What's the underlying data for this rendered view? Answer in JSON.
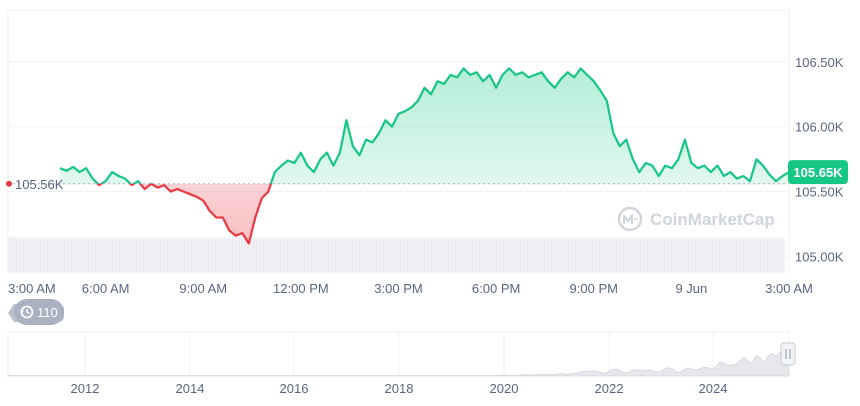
{
  "chart_data": {
    "type": "area",
    "baseline": {
      "value": 105.56,
      "label": "105.56K"
    },
    "current": {
      "value": 105.65,
      "label": "105.65K"
    },
    "y_axis": {
      "unit": "K",
      "range": [
        104.88,
        106.9
      ],
      "ticks": [
        {
          "value": 106.5,
          "label": "106.50K"
        },
        {
          "value": 106.0,
          "label": "106.00K"
        },
        {
          "value": 105.5,
          "label": "105.50K"
        },
        {
          "value": 105.0,
          "label": "105.00K"
        }
      ]
    },
    "x_axis": {
      "range": [
        0,
        24
      ],
      "ticks": [
        {
          "value": 0,
          "label": "3:00 AM"
        },
        {
          "value": 3,
          "label": "6:00 AM"
        },
        {
          "value": 6,
          "label": "9:00 AM"
        },
        {
          "value": 9,
          "label": "12:00 PM"
        },
        {
          "value": 12,
          "label": "3:00 PM"
        },
        {
          "value": 15,
          "label": "6:00 PM"
        },
        {
          "value": 18,
          "label": "9:00 PM"
        },
        {
          "value": 21,
          "label": "9 Jun"
        },
        {
          "value": 24,
          "label": "3:00 AM"
        }
      ]
    },
    "series": [
      {
        "x": [
          1.6,
          1.8,
          2.0,
          2.2,
          2.4,
          2.6,
          2.8,
          3.0,
          3.2,
          3.4,
          3.6,
          3.8,
          4.0,
          4.2,
          4.4,
          4.6,
          4.8,
          5.0,
          5.2,
          5.4,
          5.6,
          5.8,
          6.0,
          6.2,
          6.4,
          6.6,
          6.8,
          7.0,
          7.2,
          7.4,
          7.6,
          7.8,
          8.0,
          8.2,
          8.4,
          8.6,
          8.8,
          9.0,
          9.2,
          9.4,
          9.6,
          9.8,
          10.0,
          10.2,
          10.4,
          10.6,
          10.8,
          11.0,
          11.2,
          11.4,
          11.6,
          11.8,
          12.0,
          12.2,
          12.4,
          12.6,
          12.8,
          13.0,
          13.2,
          13.4,
          13.6,
          13.8,
          14.0,
          14.2,
          14.4,
          14.6,
          14.8,
          15.0,
          15.2,
          15.4,
          15.6,
          15.8,
          16.0,
          16.2,
          16.4,
          16.6,
          16.8,
          17.0,
          17.2,
          17.4,
          17.6,
          17.8,
          18.0,
          18.2,
          18.4,
          18.6,
          18.8,
          19.0,
          19.2,
          19.4,
          19.6,
          19.8,
          20.0,
          20.2,
          20.4,
          20.6,
          20.8,
          21.0,
          21.2,
          21.4,
          21.6,
          21.8,
          22.0,
          22.2,
          22.4,
          22.6,
          22.8,
          23.0,
          23.2,
          23.4,
          23.6,
          23.8,
          24.0
        ],
        "y": [
          105.68,
          105.66,
          105.69,
          105.65,
          105.68,
          105.6,
          105.55,
          105.58,
          105.65,
          105.62,
          105.6,
          105.55,
          105.58,
          105.52,
          105.56,
          105.53,
          105.55,
          105.5,
          105.52,
          105.5,
          105.48,
          105.46,
          105.43,
          105.35,
          105.3,
          105.3,
          105.2,
          105.16,
          105.18,
          105.1,
          105.3,
          105.45,
          105.5,
          105.65,
          105.7,
          105.74,
          105.72,
          105.8,
          105.7,
          105.65,
          105.75,
          105.8,
          105.7,
          105.8,
          106.05,
          105.85,
          105.78,
          105.9,
          105.88,
          105.95,
          106.05,
          106.0,
          106.1,
          106.12,
          106.15,
          106.2,
          106.3,
          106.25,
          106.35,
          106.33,
          106.4,
          106.38,
          106.45,
          106.4,
          106.42,
          106.35,
          106.4,
          106.3,
          106.4,
          106.45,
          106.4,
          106.42,
          106.38,
          106.4,
          106.42,
          106.35,
          106.3,
          106.37,
          106.42,
          106.38,
          106.45,
          106.4,
          106.35,
          106.28,
          106.2,
          105.95,
          105.85,
          105.9,
          105.75,
          105.65,
          105.72,
          105.7,
          105.62,
          105.7,
          105.68,
          105.75,
          105.9,
          105.72,
          105.68,
          105.7,
          105.65,
          105.7,
          105.62,
          105.65,
          105.6,
          105.62,
          105.58,
          105.75,
          105.7,
          105.63,
          105.58,
          105.62,
          105.65
        ]
      }
    ],
    "colors": {
      "up": "#16c784",
      "down": "#ea3943",
      "grid": "#eff2f5",
      "axis_text": "#58667e"
    },
    "grid": true,
    "watermark": "CoinMarketCap",
    "events_badge": {
      "icon": "history-icon",
      "count": "110"
    },
    "navigator": {
      "x_ticks": [
        "2012",
        "2014",
        "2016",
        "2018",
        "2020",
        "2022",
        "2024"
      ],
      "handle_icon": "drag-handle-icon"
    }
  }
}
